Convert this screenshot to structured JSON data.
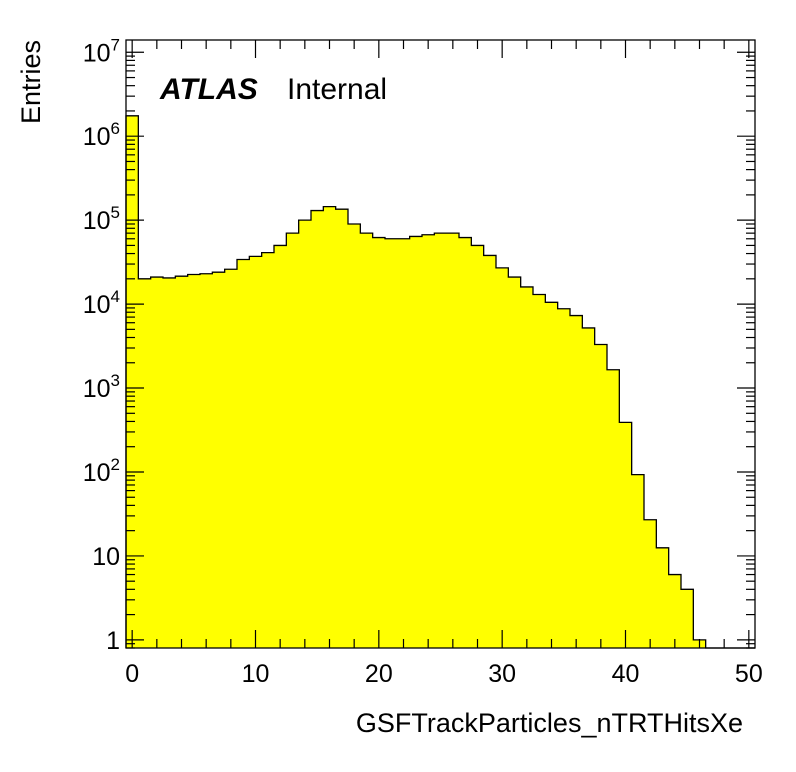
{
  "chart_data": {
    "type": "bar",
    "style": "histogram",
    "title": "",
    "xlabel": "GSFTrackParticles_nTRTHitsXe",
    "ylabel": "Entries",
    "annotation": {
      "experiment": "ATLAS",
      "status": "Internal"
    },
    "x_scale": "linear",
    "y_scale": "log",
    "xlim": [
      -0.5,
      50.5
    ],
    "ylim": [
      0.8,
      14000000
    ],
    "bin_width": 1,
    "bin_edges_start": -0.5,
    "fill_color": "#ffff00",
    "line_color": "#000000",
    "x_ticks": [
      "0",
      "10",
      "20",
      "30",
      "40",
      "50"
    ],
    "y_ticks": [
      {
        "base": "1",
        "exp": ""
      },
      {
        "base": "10",
        "exp": ""
      },
      {
        "base": "10",
        "exp": "2"
      },
      {
        "base": "10",
        "exp": "3"
      },
      {
        "base": "10",
        "exp": "4"
      },
      {
        "base": "10",
        "exp": "5"
      },
      {
        "base": "10",
        "exp": "6"
      },
      {
        "base": "10",
        "exp": "7"
      }
    ],
    "categories": [
      "0",
      "1",
      "2",
      "3",
      "4",
      "5",
      "6",
      "7",
      "8",
      "9",
      "10",
      "11",
      "12",
      "13",
      "14",
      "15",
      "16",
      "17",
      "18",
      "19",
      "20",
      "21",
      "22",
      "23",
      "24",
      "25",
      "26",
      "27",
      "28",
      "29",
      "30",
      "31",
      "32",
      "33",
      "34",
      "35",
      "36",
      "37",
      "38",
      "39",
      "40",
      "41",
      "42",
      "43",
      "44",
      "45",
      "46",
      "47",
      "48",
      "49",
      "50"
    ],
    "values": [
      1750000,
      20000,
      21000,
      20500,
      21500,
      22500,
      23000,
      24000,
      26000,
      34000,
      37000,
      41000,
      50000,
      70000,
      100000,
      130000,
      145000,
      135000,
      90000,
      70000,
      62000,
      60000,
      60000,
      64000,
      67000,
      70000,
      70000,
      62000,
      50000,
      38000,
      27000,
      21000,
      16000,
      13000,
      10500,
      8800,
      7300,
      5200,
      3300,
      1650,
      390,
      93,
      27,
      12.5,
      6,
      4,
      1,
      0,
      0,
      0,
      0
    ]
  }
}
